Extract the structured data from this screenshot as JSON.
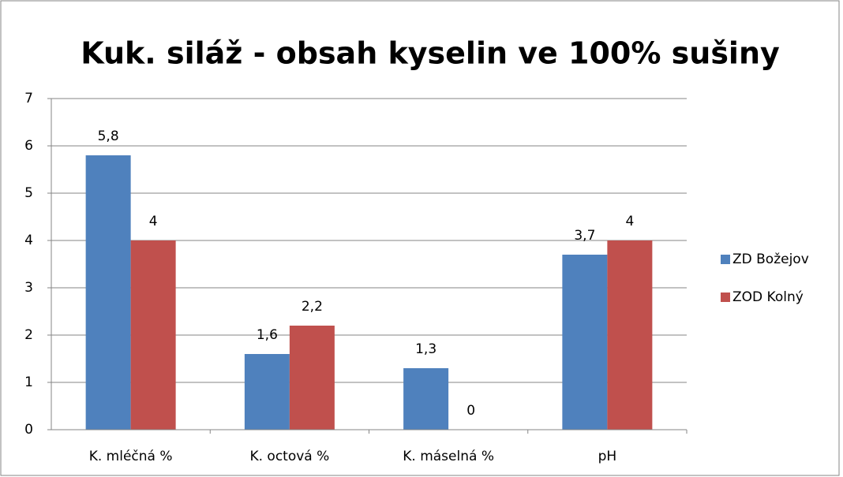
{
  "chart_data": {
    "type": "bar",
    "title": "Kuk. siláž - obsah kyselin ve 100% sušiny",
    "categories": [
      "K. mléčná %",
      "K. octová %",
      "K. máselná %",
      "pH"
    ],
    "series": [
      {
        "name": "ZD Božejov",
        "color": "#4f81bd",
        "values": [
          5.8,
          1.6,
          1.3,
          3.7
        ],
        "value_labels": [
          "5,8",
          "1,6",
          "1,3",
          "3,7"
        ]
      },
      {
        "name": "ZOD Kolný",
        "color": "#c0504d",
        "values": [
          4,
          2.2,
          0,
          4
        ],
        "value_labels": [
          "4",
          "2,2",
          "0",
          "4"
        ]
      }
    ],
    "ylim": [
      0,
      7
    ],
    "yticks": [
      0,
      1,
      2,
      3,
      4,
      5,
      6,
      7
    ],
    "grid": true,
    "legend": "right"
  }
}
